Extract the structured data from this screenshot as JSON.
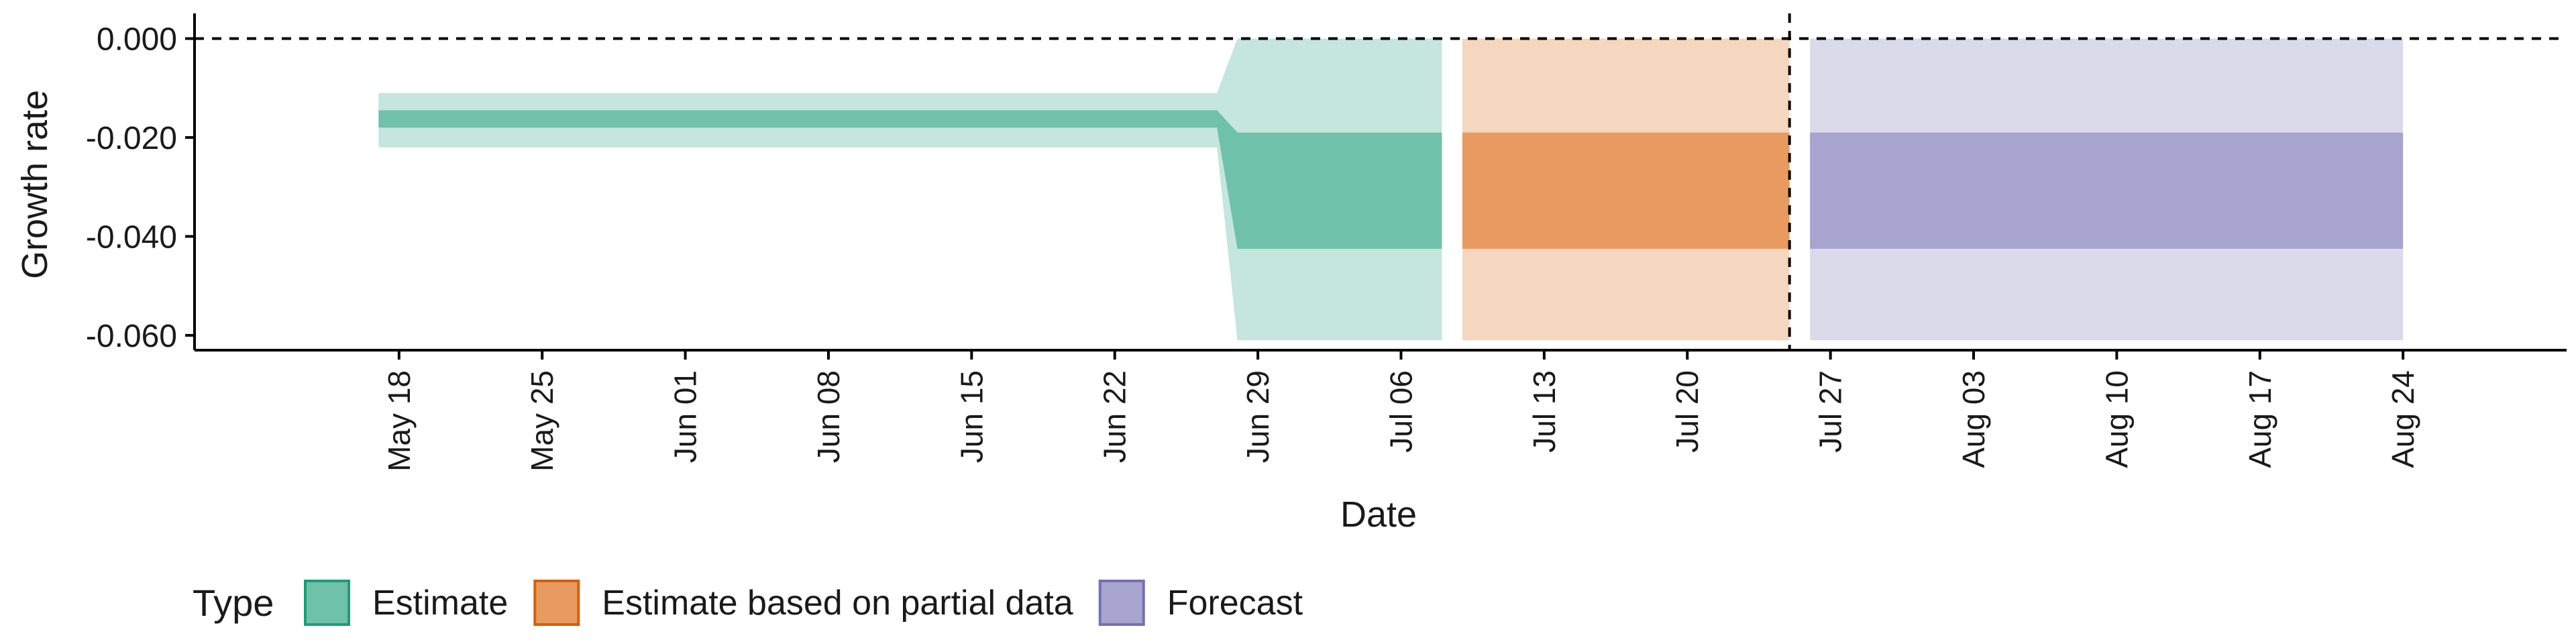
{
  "chart_data": {
    "type": "area",
    "title": "",
    "xlabel": "Date",
    "ylabel": "Growth rate",
    "x_range": [
      "2021-05-08",
      "2021-09-01"
    ],
    "ylim": [
      -0.063,
      0.004
    ],
    "x_ticks": [
      {
        "date": "2021-05-18",
        "label": "May 18"
      },
      {
        "date": "2021-05-25",
        "label": "May 25"
      },
      {
        "date": "2021-06-01",
        "label": "Jun 01"
      },
      {
        "date": "2021-06-08",
        "label": "Jun 08"
      },
      {
        "date": "2021-06-15",
        "label": "Jun 15"
      },
      {
        "date": "2021-06-22",
        "label": "Jun 22"
      },
      {
        "date": "2021-06-29",
        "label": "Jun 29"
      },
      {
        "date": "2021-07-06",
        "label": "Jul 06"
      },
      {
        "date": "2021-07-13",
        "label": "Jul 13"
      },
      {
        "date": "2021-07-20",
        "label": "Jul 20"
      },
      {
        "date": "2021-07-27",
        "label": "Jul 27"
      },
      {
        "date": "2021-08-03",
        "label": "Aug 03"
      },
      {
        "date": "2021-08-10",
        "label": "Aug 10"
      },
      {
        "date": "2021-08-17",
        "label": "Aug 17"
      },
      {
        "date": "2021-08-24",
        "label": "Aug 24"
      }
    ],
    "y_ticks": [
      {
        "value": 0.0,
        "label": "0.000"
      },
      {
        "value": -0.02,
        "label": "-0.020"
      },
      {
        "value": -0.04,
        "label": "-0.040"
      },
      {
        "value": -0.06,
        "label": "-0.060"
      }
    ],
    "reference_lines": {
      "horizontal_y": 0.0,
      "vertical_x": "2021-07-25"
    },
    "grid": false,
    "legend": {
      "title": "Type",
      "position": "bottom-left"
    },
    "series": [
      {
        "name": "Estimate",
        "color": "#1b9e77",
        "fill_inner": "#70c1a9",
        "fill_outer": "#c4e6dc",
        "points": [
          {
            "x": "2021-05-17",
            "lo90": -0.022,
            "lo50": -0.018,
            "hi50": -0.0145,
            "hi90": -0.011
          },
          {
            "x": "2021-06-27",
            "lo90": -0.022,
            "lo50": -0.018,
            "hi50": -0.0145,
            "hi90": -0.011
          },
          {
            "x": "2021-06-28",
            "lo90": -0.061,
            "lo50": -0.0425,
            "hi50": -0.019,
            "hi90": 0.0
          },
          {
            "x": "2021-07-08",
            "lo90": -0.061,
            "lo50": -0.0425,
            "hi50": -0.019,
            "hi90": 0.0
          }
        ]
      },
      {
        "name": "Estimate based on partial data",
        "color": "#d95f02",
        "fill_inner": "#e89b60",
        "fill_outer": "#f5d6bf",
        "points": [
          {
            "x": "2021-07-09",
            "lo90": -0.061,
            "lo50": -0.0425,
            "hi50": -0.019,
            "hi90": 0.0
          },
          {
            "x": "2021-07-25",
            "lo90": -0.061,
            "lo50": -0.0425,
            "hi50": -0.019,
            "hi90": 0.0
          }
        ]
      },
      {
        "name": "Forecast",
        "color": "#7570b3",
        "fill_inner": "#a7a4d0",
        "fill_outer": "#dbdaeb",
        "points": [
          {
            "x": "2021-07-26",
            "lo90": -0.061,
            "lo50": -0.0425,
            "hi50": -0.019,
            "hi90": 0.0
          },
          {
            "x": "2021-08-24",
            "lo90": -0.061,
            "lo50": -0.0425,
            "hi50": -0.019,
            "hi90": 0.0
          }
        ]
      }
    ]
  }
}
